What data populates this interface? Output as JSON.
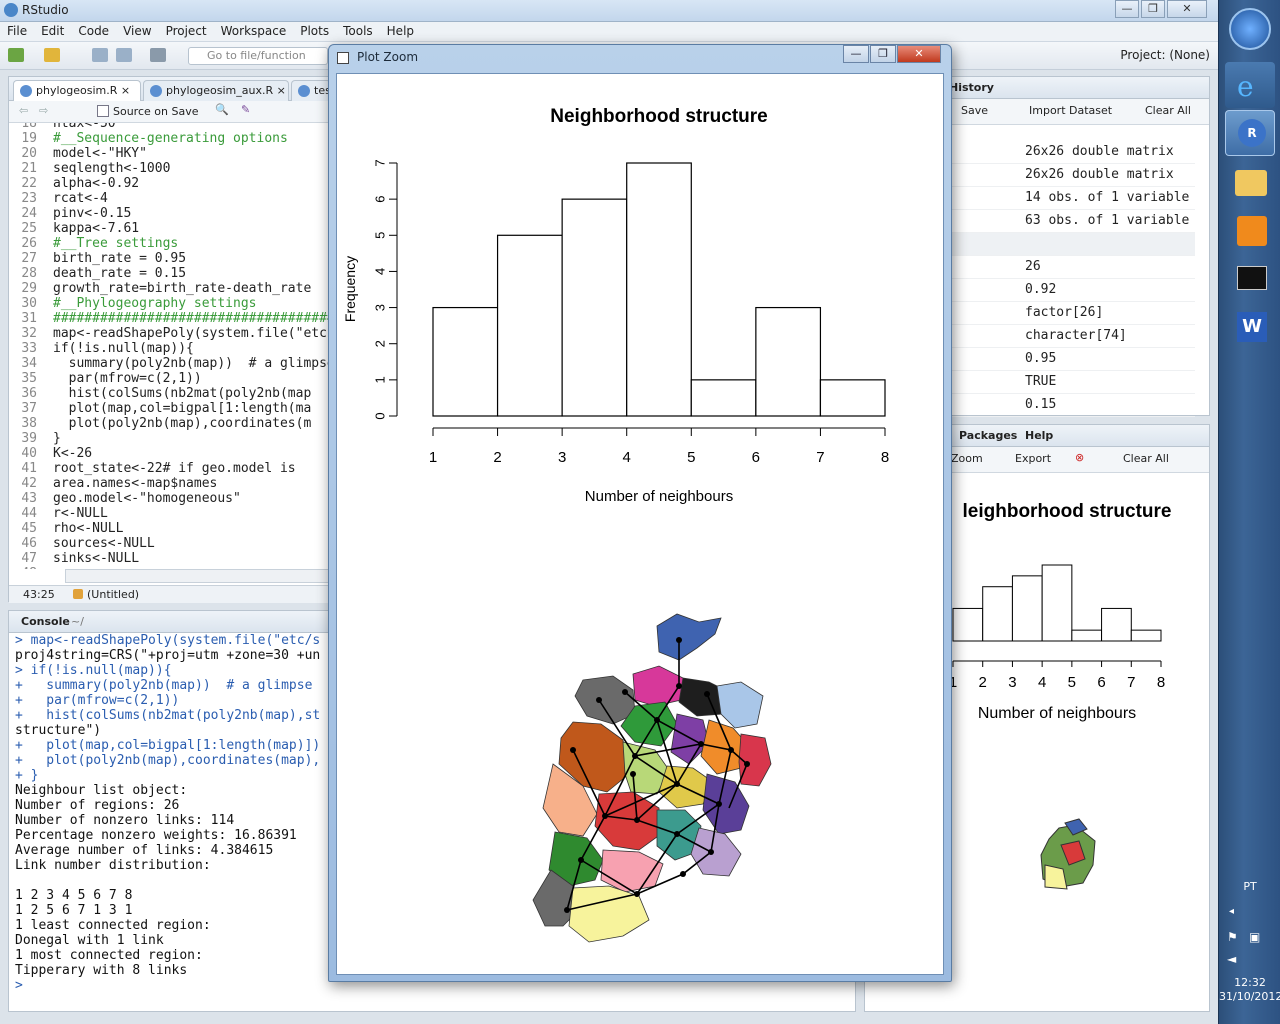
{
  "app": {
    "title": "RStudio",
    "window_buttons": {
      "minimize": "—",
      "restore": "❐",
      "close": "✕"
    },
    "menu": [
      "File",
      "Edit",
      "Code",
      "View",
      "Project",
      "Workspace",
      "Plots",
      "Tools",
      "Help"
    ],
    "goto_placeholder": "Go to file/function",
    "project_label": "Project: (None)"
  },
  "source": {
    "tabs": [
      {
        "label": "phylogeosim.R",
        "close": "×"
      },
      {
        "label": "phylogeosim_aux.R",
        "close": "×"
      },
      {
        "label": "test"
      }
    ],
    "source_on_save": "Source on Save",
    "lines": [
      {
        "num": "18",
        "text": "ntax<-50"
      },
      {
        "num": "19",
        "text": "#__Sequence-generating options"
      },
      {
        "num": "20",
        "text": "model<-\"HKY\""
      },
      {
        "num": "21",
        "text": "seqlength<-1000"
      },
      {
        "num": "22",
        "text": "alpha<-0.92"
      },
      {
        "num": "23",
        "text": "rcat<-4"
      },
      {
        "num": "24",
        "text": "pinv<-0.15"
      },
      {
        "num": "25",
        "text": "kappa<-7.61"
      },
      {
        "num": "26",
        "text": "#__Tree settings"
      },
      {
        "num": "27",
        "text": "birth_rate = 0.95"
      },
      {
        "num": "28",
        "text": "death_rate = 0.15"
      },
      {
        "num": "29",
        "text": "growth_rate=birth_rate-death_rate"
      },
      {
        "num": "30",
        "text": "#__Phylogeography settings"
      },
      {
        "num": "31",
        "text": "####################################"
      },
      {
        "num": "32",
        "text": "map<-readShapePoly(system.file(\"etc"
      },
      {
        "num": "33",
        "text": "if(!is.null(map)){"
      },
      {
        "num": "34",
        "text": "  summary(poly2nb(map))  # a glimpse"
      },
      {
        "num": "35",
        "text": "  par(mfrow=c(2,1))"
      },
      {
        "num": "36",
        "text": "  hist(colSums(nb2mat(poly2nb(map"
      },
      {
        "num": "37",
        "text": "  plot(map,col=bigpal[1:length(ma"
      },
      {
        "num": "38",
        "text": "  plot(poly2nb(map),coordinates(m"
      },
      {
        "num": "39",
        "text": "}"
      },
      {
        "num": "40",
        "text": "K<-26"
      },
      {
        "num": "41",
        "text": "root_state<-22# if geo.model is"
      },
      {
        "num": "42",
        "text": "area.names<-map$names"
      },
      {
        "num": "43",
        "text": "geo.model<-\"homogeneous\""
      },
      {
        "num": "44",
        "text": "r<-NULL"
      },
      {
        "num": "45",
        "text": "rho<-NULL"
      },
      {
        "num": "46",
        "text": "sources<-NULL"
      },
      {
        "num": "47",
        "text": "sinks<-NULL"
      },
      {
        "num": "48",
        "text": ""
      }
    ],
    "cursor_pos": "43:25",
    "scope": "(Untitled)"
  },
  "console": {
    "title": "Console",
    "path": "~/",
    "lines": [
      "> map<-readShapePoly(system.file(\"etc/s",
      "proj4string=CRS(\"+proj=utm +zone=30 +un",
      "> if(!is.null(map)){",
      "+   summary(poly2nb(map))  # a glimpse",
      "+   par(mfrow=c(2,1))",
      "+   hist(colSums(nb2mat(poly2nb(map),st",
      "structure\")",
      "+   plot(map,col=bigpal[1:length(map)])",
      "+   plot(poly2nb(map),coordinates(map),",
      "+ }",
      "Neighbour list object:",
      "Number of regions: 26",
      "Number of nonzero links: 114",
      "Percentage nonzero weights: 16.86391",
      "Average number of links: 4.384615",
      "Link number distribution:",
      "",
      "1 2 3 4 5 6 7 8",
      "1 2 5 6 7 1 3 1",
      "1 least connected region:",
      "Donegal with 1 link",
      "1 most connected region:",
      "Tipperary with 8 links",
      ">"
    ]
  },
  "environment": {
    "tab": "History",
    "save": "Save",
    "import": "Import Dataset",
    "clear": "Clear All",
    "rows": [
      "26x26 double matrix",
      "26x26 double matrix",
      "14 obs. of 1 variable",
      "63 obs. of 1 variable",
      "",
      "26",
      "0.92",
      "factor[26]",
      "character[74]",
      "0.95",
      "TRUE",
      "0.15"
    ]
  },
  "plots_pane": {
    "tabs": [
      "Packages",
      "Help"
    ],
    "zoom": "Zoom",
    "export": "Export",
    "clear": "Clear All",
    "chart_title": "leighborhood structure",
    "xlabel": "Number of neighbours",
    "ticks": [
      "1",
      "2",
      "3",
      "4",
      "5",
      "6",
      "7",
      "8"
    ]
  },
  "plot_zoom": {
    "title": "Plot Zoom"
  },
  "chart_data": {
    "type": "bar",
    "title": "Neighborhood structure",
    "xlabel": "Number of neighbours",
    "ylabel": "Frequency",
    "categories": [
      "1",
      "2",
      "3",
      "4",
      "5",
      "6",
      "7"
    ],
    "bins": [
      [
        1,
        2
      ],
      [
        2,
        3
      ],
      [
        3,
        4
      ],
      [
        4,
        5
      ],
      [
        5,
        6
      ],
      [
        6,
        7
      ],
      [
        7,
        8
      ]
    ],
    "values": [
      3,
      5,
      6,
      7,
      1,
      3,
      1
    ],
    "x_ticks": [
      "1",
      "2",
      "3",
      "4",
      "5",
      "6",
      "7",
      "8"
    ],
    "y_ticks": [
      "0",
      "1",
      "2",
      "3",
      "4",
      "5",
      "6",
      "7"
    ],
    "xlim": [
      1,
      8
    ],
    "ylim": [
      0,
      7
    ]
  },
  "taskbar": {
    "lang": "PT",
    "time": "12:32",
    "date": "31/10/2012"
  }
}
